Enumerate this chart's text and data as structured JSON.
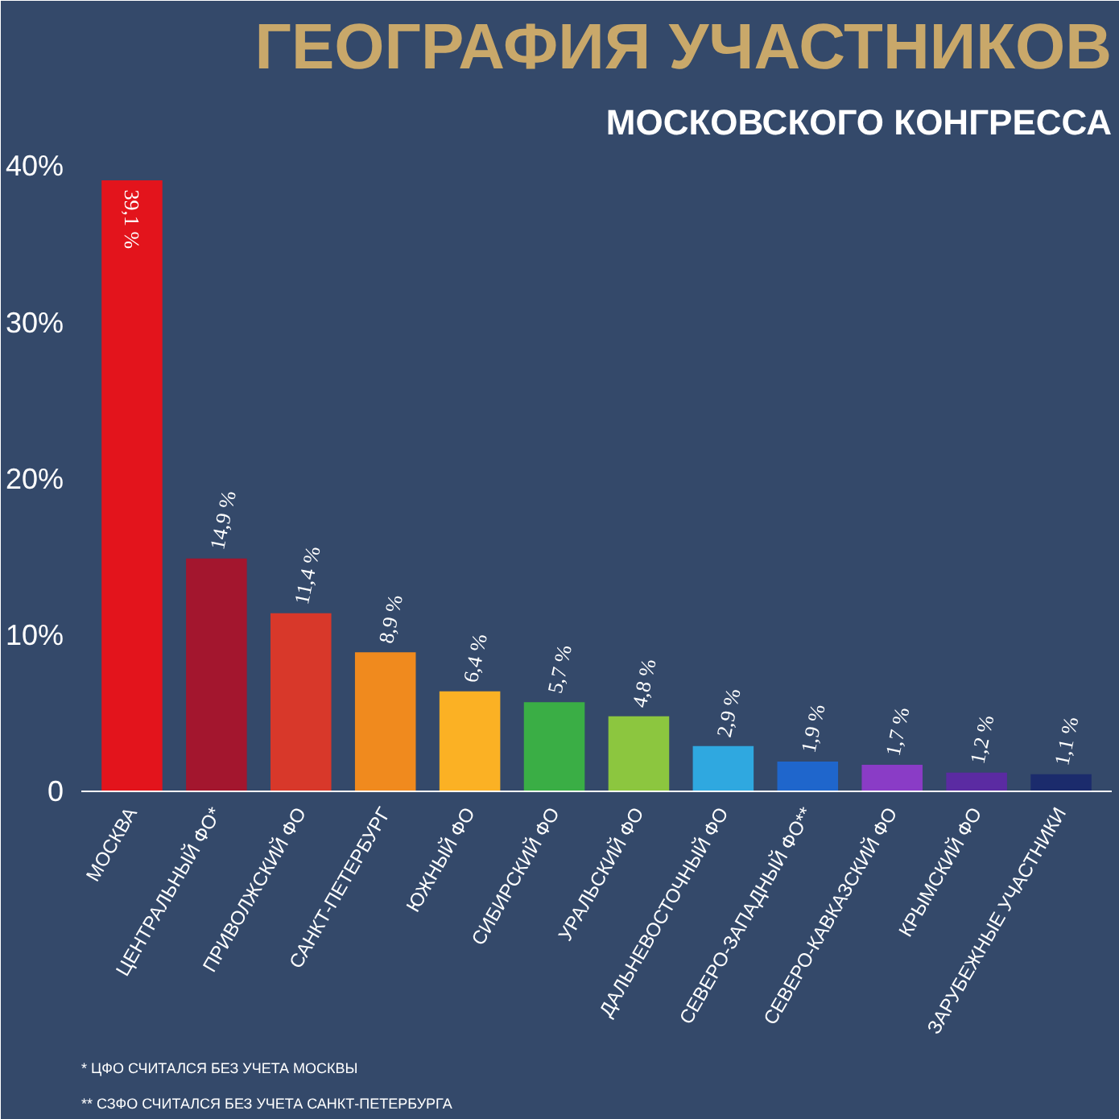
{
  "chart_data": {
    "type": "bar",
    "title": "ГЕОГРАФИЯ УЧАСТНИКОВ",
    "subtitle": "МОСКОВСКОГО КОНГРЕССА",
    "categories": [
      "МОСКВА",
      "ЦЕНТРАЛЬНЫЙ ФО*",
      "ПРИВОЛЖСКИЙ ФО",
      "САНКТ-ПЕТЕРБУРГ",
      "ЮЖНЫЙ ФО",
      "СИБИРСКИЙ ФО",
      "УРАЛЬСКИЙ ФО",
      "ДАЛЬНЕВОСТОЧНЫЙ ФО",
      "СЕВЕРО-ЗАПАДНЫЙ ФО**",
      "СЕВЕРО-КАВКАЗСКИЙ ФО",
      "КРЫМСКИЙ ФО",
      "ЗАРУБЕЖНЫЕ УЧАСТНИКИ"
    ],
    "values": [
      39.1,
      14.9,
      11.4,
      8.9,
      6.4,
      5.7,
      4.8,
      2.9,
      1.9,
      1.7,
      1.2,
      1.1
    ],
    "colors": [
      "#e3141c",
      "#a3162e",
      "#d8382a",
      "#f08a1e",
      "#fbb124",
      "#3aae45",
      "#8cc63f",
      "#2fa8e0",
      "#1f66cc",
      "#8a3cc6",
      "#5b2ba2",
      "#1b2b6c"
    ],
    "value_labels": [
      "39,1 %",
      "14,9 %",
      "11,4 %",
      "8,9 %",
      "6,4 %",
      "5,7 %",
      "4,8 %",
      "2,9 %",
      "1,9 %",
      "1,7 %",
      "1,2 %",
      "1,1 %"
    ],
    "ylim": [
      0,
      41
    ],
    "yticks": [
      {
        "value": 0,
        "label": "0"
      },
      {
        "value": 10,
        "label": "10%"
      },
      {
        "value": 20,
        "label": "20%"
      },
      {
        "value": 30,
        "label": "30%"
      },
      {
        "value": 40,
        "label": "40%"
      }
    ],
    "grid": false,
    "annotations": [
      "*  ЦФО СЧИТАЛСЯ БЕЗ УЧЕТА МОСКВЫ",
      "** СЗФО СЧИТАЛСЯ БЕЗ УЧЕТА САНКТ-ПЕТЕРБУРГА"
    ]
  }
}
